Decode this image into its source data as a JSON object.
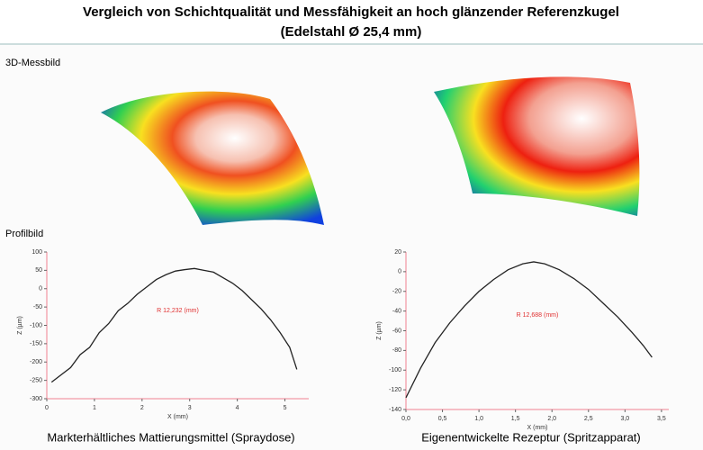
{
  "title_line1": "Vergleich von Schichtqualität und Messfähigkeit an hoch glänzender Referenzkugel",
  "title_line2": "(Edelstahl Ø 25,4 mm)",
  "label_3d": "3D-Messbild",
  "label_profile": "Profilbild",
  "caption_left": "Markterhältliches Mattierungsmittel (Spraydose)",
  "caption_right": "Eigenentwickelte Rezeptur (Spritzapparat)",
  "chart_data": [
    {
      "type": "line",
      "xlabel": "X (mm)",
      "ylabel": "Z (µm)",
      "annotation": "R 12,232  (mm)",
      "x": [
        0.1,
        0.3,
        0.5,
        0.7,
        0.9,
        1.1,
        1.3,
        1.5,
        1.7,
        1.9,
        2.1,
        2.3,
        2.5,
        2.7,
        2.9,
        3.1,
        3.3,
        3.5,
        3.7,
        3.9,
        4.1,
        4.3,
        4.5,
        4.7,
        4.9,
        5.1,
        5.25
      ],
      "series": [
        {
          "color": "#222222",
          "values": [
            -255,
            -235,
            -215,
            -180,
            -160,
            -120,
            -95,
            -60,
            -40,
            -15,
            5,
            25,
            38,
            48,
            52,
            55,
            50,
            45,
            30,
            15,
            -5,
            -30,
            -55,
            -85,
            -120,
            -160,
            -220
          ]
        }
      ],
      "xlim": [
        0,
        5.5
      ],
      "xticks": [
        0,
        1,
        2,
        3,
        4,
        5
      ],
      "ylim": [
        -300,
        100
      ],
      "yticks": [
        -300,
        -250,
        -200,
        -150,
        -100,
        -50,
        0,
        50,
        100
      ]
    },
    {
      "type": "line",
      "xlabel": "X (mm)",
      "ylabel": "Z (µm)",
      "annotation": "R 12,688  (mm)",
      "x": [
        0,
        0.2,
        0.4,
        0.6,
        0.8,
        1.0,
        1.2,
        1.4,
        1.6,
        1.75,
        1.9,
        2.1,
        2.3,
        2.5,
        2.7,
        2.9,
        3.1,
        3.25,
        3.37
      ],
      "series": [
        {
          "color": "#222222",
          "values": [
            -128,
            -98,
            -72,
            -52,
            -35,
            -20,
            -8,
            2,
            8,
            10,
            8,
            2,
            -7,
            -18,
            -32,
            -46,
            -62,
            -75,
            -87
          ]
        }
      ],
      "xlim": [
        0,
        3.6
      ],
      "xticks": [
        {
          "value": 0,
          "label": "0,0"
        },
        {
          "value": 0.5,
          "label": "0,5"
        },
        {
          "value": 1,
          "label": "1,0"
        },
        {
          "value": 1.5,
          "label": "1,5"
        },
        {
          "value": 2,
          "label": "2,0"
        },
        {
          "value": 2.5,
          "label": "2,5"
        },
        {
          "value": 3,
          "label": "3,0"
        },
        {
          "value": 3.5,
          "label": "3,5"
        }
      ],
      "ylim": [
        -140,
        20
      ],
      "yticks": [
        -140,
        -120,
        -100,
        -80,
        -60,
        -40,
        -20,
        0,
        20
      ]
    }
  ]
}
